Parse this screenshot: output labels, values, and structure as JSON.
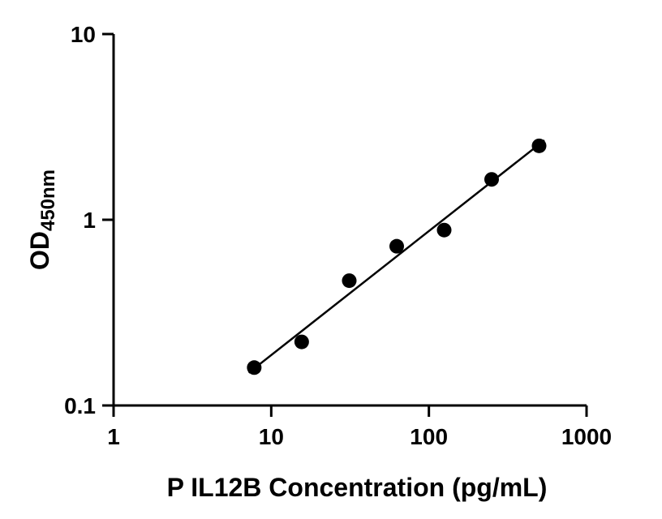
{
  "chart_data": {
    "type": "scatter",
    "title": "",
    "xlabel": "P IL12B Concentration (pg/mL)",
    "ylabel_main": "OD",
    "ylabel_sub": "450nm",
    "x_scale": "log",
    "y_scale": "log",
    "xlim": [
      1,
      1000
    ],
    "ylim": [
      0.1,
      10
    ],
    "xticks": [
      1,
      10,
      100,
      1000
    ],
    "xtick_labels": [
      "1",
      "10",
      "100",
      "1000"
    ],
    "yticks": [
      0.1,
      1,
      10
    ],
    "ytick_labels": [
      "0.1",
      "1",
      "10"
    ],
    "grid": false,
    "legend": false,
    "axis_color": "#000000",
    "series": [
      {
        "name": "standard-curve-points",
        "marker": "circle",
        "color": "#000000",
        "x": [
          7.8,
          15.6,
          31.25,
          62.5,
          125,
          250,
          500
        ],
        "y": [
          0.16,
          0.22,
          0.47,
          0.72,
          0.88,
          1.65,
          2.5
        ]
      }
    ],
    "trend_line": {
      "color": "#000000",
      "x": [
        7.2,
        540
      ],
      "y": [
        0.15,
        2.68
      ]
    }
  }
}
